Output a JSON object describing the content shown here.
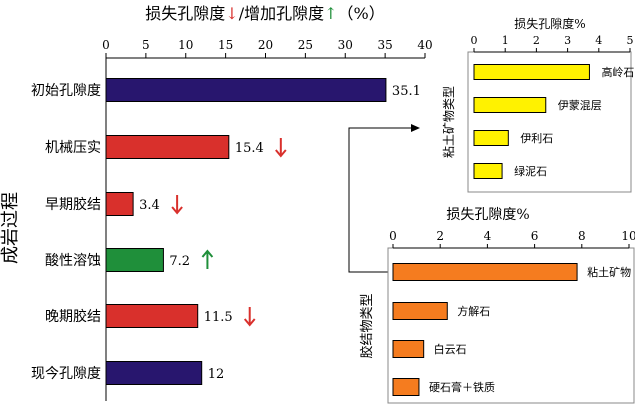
{
  "colors": {
    "navy": "#28166e",
    "red": "#d9302c",
    "green": "#1f8f3a",
    "yellow": "#fff200",
    "orange": "#f57c1f",
    "arrow_down": "#d9302c",
    "arrow_up": "#1f8f3a"
  },
  "chart_data": [
    {
      "type": "bar",
      "orientation": "horizontal",
      "title": {
        "part1": "损失孔隙度",
        "part2": "/增加孔隙度",
        "part3": "（%）"
      },
      "ylabel": "成岩过程",
      "xlim": [
        0,
        40
      ],
      "xticks": [
        "0",
        "5",
        "10",
        "15",
        "20",
        "25",
        "30",
        "35",
        "40"
      ],
      "categories": [
        "初始孔隙度",
        "机械压实",
        "早期胶结",
        "酸性溶蚀",
        "晚期胶结",
        "现今孔隙度"
      ],
      "values": [
        35.1,
        15.4,
        3.4,
        7.2,
        11.5,
        12
      ],
      "value_labels": [
        "35.1",
        "15.4",
        "3.4",
        "7.2",
        "11.5",
        "12"
      ],
      "colors": [
        "navy",
        "red",
        "red",
        "green",
        "red",
        "navy"
      ],
      "markers": [
        "",
        "down",
        "down",
        "up",
        "down",
        ""
      ]
    },
    {
      "type": "bar",
      "orientation": "horizontal",
      "title": "损失孔隙度%",
      "ylabel": "粘土矿物类型",
      "xlim": [
        0,
        5
      ],
      "xticks": [
        "0",
        "1",
        "2",
        "3",
        "4",
        "5"
      ],
      "categories": [
        "高岭石",
        "伊蒙混层",
        "伊利石",
        "绿泥石"
      ],
      "values": [
        3.7,
        2.3,
        1.1,
        0.9
      ],
      "color": "yellow"
    },
    {
      "type": "bar",
      "orientation": "horizontal",
      "title": "损失孔隙度%",
      "ylabel": "胶结物类型",
      "xlim": [
        0,
        10
      ],
      "xticks": [
        "0",
        "2",
        "4",
        "6",
        "8",
        "10"
      ],
      "categories": [
        "粘土矿物",
        "方解石",
        "白云石",
        "硬石膏＋铁质"
      ],
      "values": [
        7.8,
        2.3,
        1.3,
        1.1
      ],
      "color": "orange"
    }
  ]
}
